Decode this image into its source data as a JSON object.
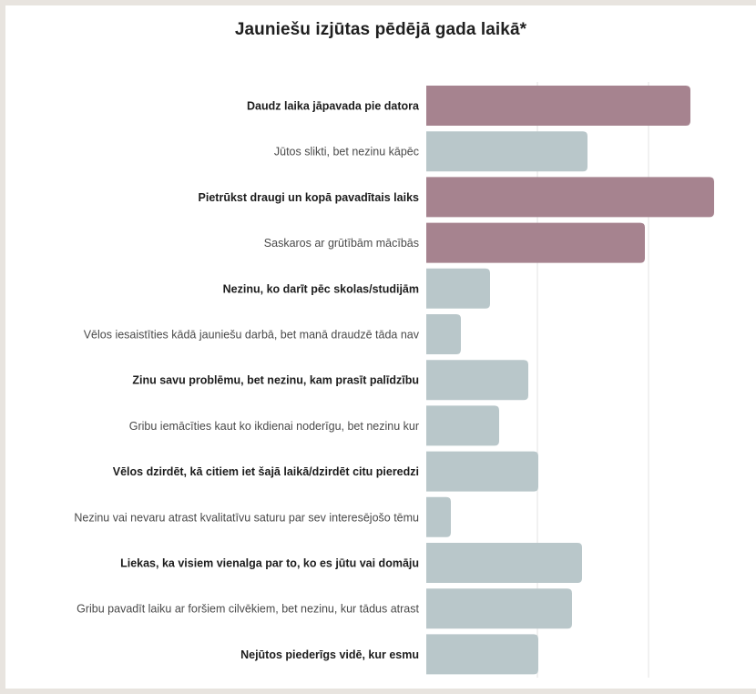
{
  "chart_data": {
    "type": "bar",
    "orientation": "horizontal",
    "title": "Jauniešu izjūtas pēdējā gada laikā*",
    "xlabel": "",
    "ylabel": "",
    "grid": true,
    "highlight_color": "#a6838f",
    "base_color": "#b9c7ca",
    "categories": [
      "Daudz laika jāpavada pie datora",
      "Jūtos slikti, bet nezinu kāpēc",
      "Pietrūkst draugi un kopā pavadītais laiks",
      "Saskaros ar grūtībām mācībās",
      "Nezinu, ko darīt pēc skolas/studijām",
      "Vēlos iesaistīties kādā jauniešu darbā, bet manā draudzē tāda nav",
      "Zinu savu problēmu, bet nezinu, kam prasīt palīdzību",
      "Gribu iemācīties kaut ko ikdienai noderīgu, bet nezinu kur",
      "Vēlos dzirdēt, kā citiem iet šajā laikā/dzirdēt citu pieredzi",
      "Nezinu vai nevaru atrast kvalitatīvu saturu par sev interesējošo tēmu",
      "Liekas, ka visiem vienalga par to, ko es jūtu vai domāju",
      "Gribu pavadīt laiku ar foršiem cilvēkiem,  bet nezinu, kur tādus atrast",
      "Nejūtos piederīgs vidē, kur esmu"
    ],
    "values": [
      290,
      177,
      316,
      240,
      70,
      38,
      112,
      80,
      123,
      27,
      171,
      160,
      123
    ],
    "highlighted": [
      true,
      false,
      true,
      true,
      false,
      false,
      false,
      false,
      false,
      false,
      false,
      false,
      false
    ],
    "bold_labels": [
      true,
      false,
      true,
      false,
      true,
      false,
      true,
      false,
      true,
      false,
      true,
      false,
      true
    ]
  }
}
